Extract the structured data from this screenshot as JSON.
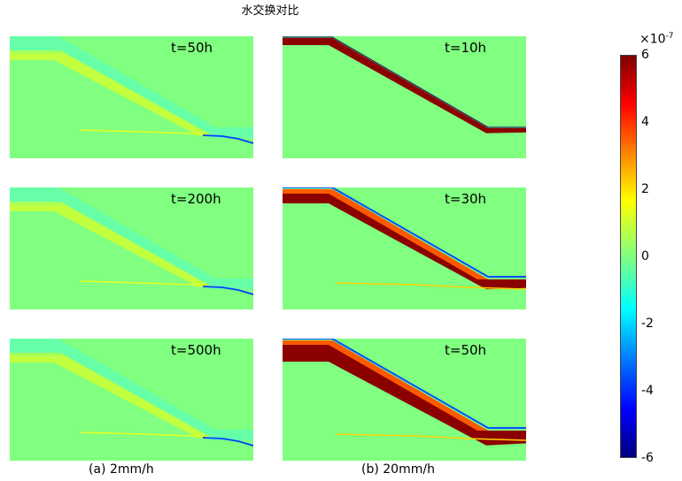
{
  "title": "水交换对比",
  "chart_data": {
    "type": "heatmap",
    "title": "水交换对比",
    "panels": [
      {
        "column": "a",
        "time_label": "t=50h"
      },
      {
        "column": "a",
        "time_label": "t=200h"
      },
      {
        "column": "a",
        "time_label": "t=500h"
      },
      {
        "column": "b",
        "time_label": "t=10h"
      },
      {
        "column": "b",
        "time_label": "t=30h"
      },
      {
        "column": "b",
        "time_label": "t=50h"
      }
    ],
    "captions": [
      "(a)  2mm/h",
      "(b)  20mm/h"
    ],
    "colorbar": {
      "colormap": "jet",
      "range": [
        -6,
        6
      ],
      "ticks": [
        "6",
        "4",
        "2",
        "0",
        "-2",
        "-4",
        "-6"
      ],
      "exponent_base": "×10",
      "exponent_power": "-7"
    }
  }
}
